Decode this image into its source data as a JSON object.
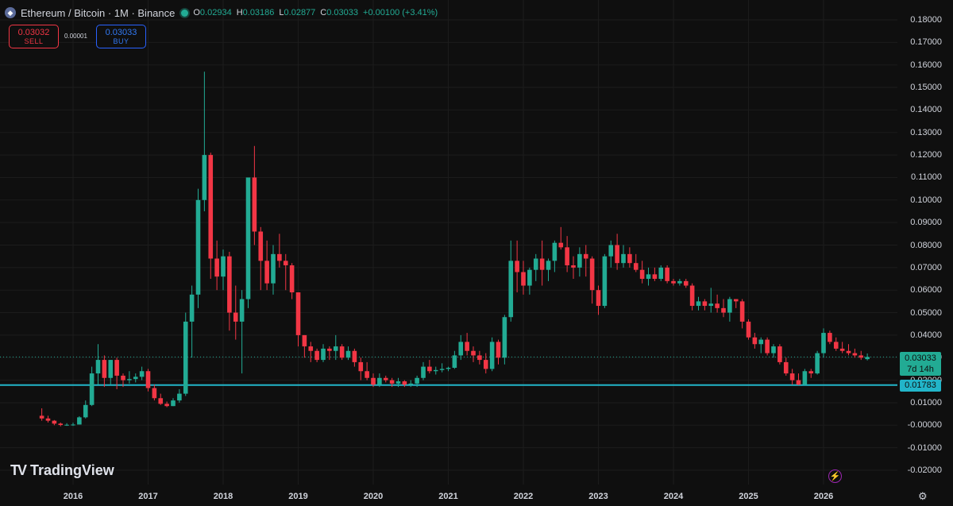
{
  "header": {
    "symbol_icon": "ethereum-icon",
    "title": "Ethereum / Bitcoin · 1M · Binance",
    "open_label": "O",
    "open": "0.02934",
    "high_label": "H",
    "high": "0.03186",
    "low_label": "L",
    "low": "0.02877",
    "close_label": "C",
    "close": "0.03033",
    "change": "+0.00100 (+3.41%)"
  },
  "trade": {
    "sell_price": "0.03032",
    "sell_label": "SELL",
    "spread": "0.00001",
    "buy_price": "0.03033",
    "buy_label": "BUY"
  },
  "tags": {
    "last_price": "0.03033",
    "countdown": "7d 14h",
    "level": "0.01783"
  },
  "logo": {
    "mark": "TV",
    "name": "TradingView"
  },
  "icons": {
    "bolt": "lightning-icon",
    "settings": "settings-gear-icon"
  },
  "colors": {
    "up": "#22ab94",
    "down": "#f23645",
    "level_line": "#22b5c9",
    "background": "#0f0f0f"
  },
  "chart_data": {
    "type": "candlestick",
    "symbol": "ETH/BTC",
    "interval": "1M",
    "exchange": "Binance",
    "price_ticks": [
      "0.18000",
      "0.17000",
      "0.16000",
      "0.15000",
      "0.14000",
      "0.13000",
      "0.12000",
      "0.11000",
      "0.10000",
      "0.09000",
      "0.08000",
      "0.07000",
      "0.06000",
      "0.05000",
      "0.04000",
      "0.03000",
      "0.02000",
      "0.01000",
      "-0.00000",
      "-0.01000",
      "-0.02000"
    ],
    "time_ticks": [
      "2016",
      "2017",
      "2018",
      "2019",
      "2020",
      "2021",
      "2022",
      "2023",
      "2024",
      "2025",
      "2026"
    ],
    "ylim": [
      -0.02,
      0.18
    ],
    "start": "2015-08",
    "horizontal_line": 0.01783,
    "candles": [
      [
        0.0042,
        0.0075,
        0.002,
        0.003
      ],
      [
        0.003,
        0.0042,
        0.0012,
        0.002
      ],
      [
        0.002,
        0.0023,
        0.0,
        0.0007
      ],
      [
        0.0007,
        0.0012,
        -0.0005,
        0.0001
      ],
      [
        0.0001,
        0.0009,
        -0.0003,
        0.0002
      ],
      [
        0.0002,
        0.0011,
        -0.0003,
        0.0003
      ],
      [
        0.0003,
        0.004,
        0.0003,
        0.0035
      ],
      [
        0.0035,
        0.011,
        0.003,
        0.009
      ],
      [
        0.009,
        0.026,
        0.0085,
        0.023
      ],
      [
        0.023,
        0.036,
        0.018,
        0.029
      ],
      [
        0.029,
        0.031,
        0.017,
        0.021
      ],
      [
        0.021,
        0.029,
        0.018,
        0.029
      ],
      [
        0.029,
        0.03,
        0.016,
        0.022
      ],
      [
        0.022,
        0.023,
        0.017,
        0.02
      ],
      [
        0.02,
        0.024,
        0.0185,
        0.0205
      ],
      [
        0.0205,
        0.023,
        0.019,
        0.0215
      ],
      [
        0.0215,
        0.026,
        0.02,
        0.024
      ],
      [
        0.024,
        0.025,
        0.015,
        0.0165
      ],
      [
        0.0165,
        0.018,
        0.011,
        0.012
      ],
      [
        0.012,
        0.014,
        0.009,
        0.0095
      ],
      [
        0.0095,
        0.0105,
        0.008,
        0.0085
      ],
      [
        0.0085,
        0.012,
        0.0085,
        0.011
      ],
      [
        0.011,
        0.016,
        0.01,
        0.014
      ],
      [
        0.014,
        0.05,
        0.013,
        0.046
      ],
      [
        0.046,
        0.062,
        0.03,
        0.058
      ],
      [
        0.058,
        0.105,
        0.052,
        0.1
      ],
      [
        0.1,
        0.157,
        0.095,
        0.12
      ],
      [
        0.12,
        0.121,
        0.065,
        0.074
      ],
      [
        0.074,
        0.082,
        0.06,
        0.066
      ],
      [
        0.066,
        0.078,
        0.06,
        0.075
      ],
      [
        0.075,
        0.077,
        0.042,
        0.05
      ],
      [
        0.05,
        0.062,
        0.038,
        0.046
      ],
      [
        0.046,
        0.06,
        0.023,
        0.056
      ],
      [
        0.056,
        0.11,
        0.052,
        0.11
      ],
      [
        0.11,
        0.124,
        0.08,
        0.086
      ],
      [
        0.086,
        0.088,
        0.06,
        0.073
      ],
      [
        0.073,
        0.082,
        0.06,
        0.063
      ],
      [
        0.063,
        0.08,
        0.058,
        0.076
      ],
      [
        0.076,
        0.085,
        0.07,
        0.073
      ],
      [
        0.073,
        0.076,
        0.06,
        0.071
      ],
      [
        0.071,
        0.072,
        0.056,
        0.059
      ],
      [
        0.059,
        0.059,
        0.035,
        0.04
      ],
      [
        0.04,
        0.04,
        0.03,
        0.035
      ],
      [
        0.035,
        0.037,
        0.028,
        0.033
      ],
      [
        0.033,
        0.034,
        0.028,
        0.029
      ],
      [
        0.029,
        0.036,
        0.028,
        0.034
      ],
      [
        0.034,
        0.035,
        0.029,
        0.033
      ],
      [
        0.033,
        0.04,
        0.029,
        0.035
      ],
      [
        0.035,
        0.036,
        0.029,
        0.03
      ],
      [
        0.03,
        0.035,
        0.029,
        0.033
      ],
      [
        0.033,
        0.034,
        0.026,
        0.028
      ],
      [
        0.028,
        0.03,
        0.02,
        0.024
      ],
      [
        0.024,
        0.028,
        0.02,
        0.021
      ],
      [
        0.021,
        0.023,
        0.017,
        0.018
      ],
      [
        0.018,
        0.023,
        0.017,
        0.021
      ],
      [
        0.021,
        0.022,
        0.019,
        0.02
      ],
      [
        0.02,
        0.021,
        0.017,
        0.0185
      ],
      [
        0.0185,
        0.021,
        0.017,
        0.0195
      ],
      [
        0.0195,
        0.02,
        0.017,
        0.018
      ],
      [
        0.018,
        0.02,
        0.017,
        0.0185
      ],
      [
        0.0185,
        0.022,
        0.017,
        0.021
      ],
      [
        0.021,
        0.028,
        0.02,
        0.026
      ],
      [
        0.026,
        0.029,
        0.023,
        0.024
      ],
      [
        0.024,
        0.026,
        0.0225,
        0.0245
      ],
      [
        0.0245,
        0.0275,
        0.0235,
        0.025
      ],
      [
        0.025,
        0.026,
        0.024,
        0.0255
      ],
      [
        0.0255,
        0.033,
        0.025,
        0.031
      ],
      [
        0.031,
        0.04,
        0.029,
        0.037
      ],
      [
        0.037,
        0.041,
        0.031,
        0.033
      ],
      [
        0.033,
        0.035,
        0.028,
        0.031
      ],
      [
        0.031,
        0.033,
        0.027,
        0.029
      ],
      [
        0.029,
        0.032,
        0.023,
        0.025
      ],
      [
        0.025,
        0.039,
        0.024,
        0.037
      ],
      [
        0.037,
        0.038,
        0.027,
        0.03
      ],
      [
        0.03,
        0.049,
        0.027,
        0.048
      ],
      [
        0.048,
        0.082,
        0.046,
        0.073
      ],
      [
        0.073,
        0.082,
        0.059,
        0.068
      ],
      [
        0.068,
        0.073,
        0.058,
        0.062
      ],
      [
        0.062,
        0.07,
        0.058,
        0.069
      ],
      [
        0.069,
        0.076,
        0.064,
        0.074
      ],
      [
        0.074,
        0.082,
        0.062,
        0.069
      ],
      [
        0.069,
        0.074,
        0.064,
        0.073
      ],
      [
        0.073,
        0.082,
        0.068,
        0.081
      ],
      [
        0.081,
        0.088,
        0.078,
        0.079
      ],
      [
        0.079,
        0.084,
        0.068,
        0.071
      ],
      [
        0.071,
        0.075,
        0.065,
        0.07
      ],
      [
        0.07,
        0.079,
        0.066,
        0.076
      ],
      [
        0.076,
        0.08,
        0.066,
        0.074
      ],
      [
        0.074,
        0.075,
        0.054,
        0.06
      ],
      [
        0.06,
        0.062,
        0.049,
        0.053
      ],
      [
        0.053,
        0.076,
        0.052,
        0.075
      ],
      [
        0.075,
        0.082,
        0.07,
        0.08
      ],
      [
        0.08,
        0.085,
        0.069,
        0.072
      ],
      [
        0.072,
        0.08,
        0.07,
        0.076
      ],
      [
        0.076,
        0.079,
        0.07,
        0.072
      ],
      [
        0.072,
        0.076,
        0.068,
        0.069
      ],
      [
        0.069,
        0.073,
        0.063,
        0.065
      ],
      [
        0.065,
        0.07,
        0.062,
        0.067
      ],
      [
        0.067,
        0.07,
        0.064,
        0.065
      ],
      [
        0.065,
        0.071,
        0.064,
        0.07
      ],
      [
        0.07,
        0.071,
        0.063,
        0.064
      ],
      [
        0.064,
        0.065,
        0.062,
        0.063
      ],
      [
        0.063,
        0.065,
        0.062,
        0.064
      ],
      [
        0.064,
        0.065,
        0.061,
        0.062
      ],
      [
        0.062,
        0.063,
        0.051,
        0.053
      ],
      [
        0.053,
        0.057,
        0.051,
        0.055
      ],
      [
        0.055,
        0.056,
        0.051,
        0.053
      ],
      [
        0.053,
        0.061,
        0.05,
        0.054
      ],
      [
        0.054,
        0.058,
        0.05,
        0.052
      ],
      [
        0.052,
        0.056,
        0.048,
        0.05
      ],
      [
        0.05,
        0.057,
        0.046,
        0.056
      ],
      [
        0.056,
        0.056,
        0.052,
        0.055
      ],
      [
        0.055,
        0.056,
        0.043,
        0.046
      ],
      [
        0.046,
        0.047,
        0.038,
        0.039
      ],
      [
        0.039,
        0.041,
        0.034,
        0.036
      ],
      [
        0.036,
        0.039,
        0.032,
        0.038
      ],
      [
        0.038,
        0.039,
        0.031,
        0.032
      ],
      [
        0.032,
        0.036,
        0.03,
        0.035
      ],
      [
        0.035,
        0.036,
        0.027,
        0.028
      ],
      [
        0.028,
        0.03,
        0.022,
        0.023
      ],
      [
        0.023,
        0.025,
        0.018,
        0.02
      ],
      [
        0.02,
        0.023,
        0.0178,
        0.018
      ],
      [
        0.018,
        0.025,
        0.0178,
        0.024
      ],
      [
        0.024,
        0.025,
        0.021,
        0.023
      ],
      [
        0.023,
        0.033,
        0.0225,
        0.032
      ],
      [
        0.032,
        0.043,
        0.03,
        0.041
      ],
      [
        0.041,
        0.042,
        0.036,
        0.037
      ],
      [
        0.037,
        0.039,
        0.033,
        0.034
      ],
      [
        0.034,
        0.037,
        0.032,
        0.033
      ],
      [
        0.033,
        0.036,
        0.031,
        0.032
      ],
      [
        0.032,
        0.034,
        0.03,
        0.031
      ],
      [
        0.031,
        0.033,
        0.029,
        0.03
      ],
      [
        0.02934,
        0.03186,
        0.02877,
        0.03033
      ]
    ]
  }
}
